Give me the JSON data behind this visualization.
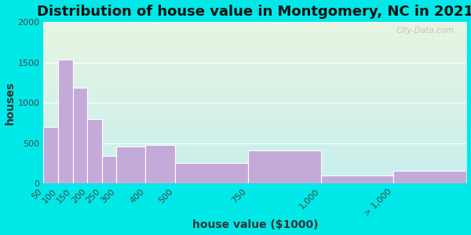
{
  "title": "Distribution of house value in Montgomery, NC in 2021",
  "xlabel": "house value ($1000)",
  "ylabel": "houses",
  "bar_labels": [
    "50",
    "100",
    "150",
    "200",
    "250",
    "300",
    "400",
    "500",
    "750",
    "1,000",
    "> 1,000"
  ],
  "bar_values": [
    700,
    1530,
    1185,
    800,
    345,
    455,
    475,
    255,
    415,
    105,
    155
  ],
  "bar_color": "#c4aad8",
  "bar_edge_color": "#ffffff",
  "ylim": [
    0,
    2000
  ],
  "yticks": [
    0,
    500,
    1000,
    1500,
    2000
  ],
  "bg_outer": "#00e8e8",
  "bg_inner_top": "#e8f5e2",
  "bg_inner_bottom": "#c5eff0",
  "title_fontsize": 13,
  "axis_label_fontsize": 10,
  "tick_fontsize": 8,
  "watermark": "City-Data.com",
  "bin_edges": [
    50,
    100,
    150,
    200,
    250,
    300,
    400,
    500,
    750,
    1000,
    1250,
    1500
  ],
  "x_tick_positions": [
    50,
    100,
    150,
    200,
    250,
    300,
    400,
    500,
    750,
    1000,
    1250
  ],
  "x_tick_labels": [
    "50",
    "100",
    "150",
    "200",
    "250",
    "300",
    "400",
    "500",
    "750",
    "1,000",
    "> 1,000"
  ]
}
